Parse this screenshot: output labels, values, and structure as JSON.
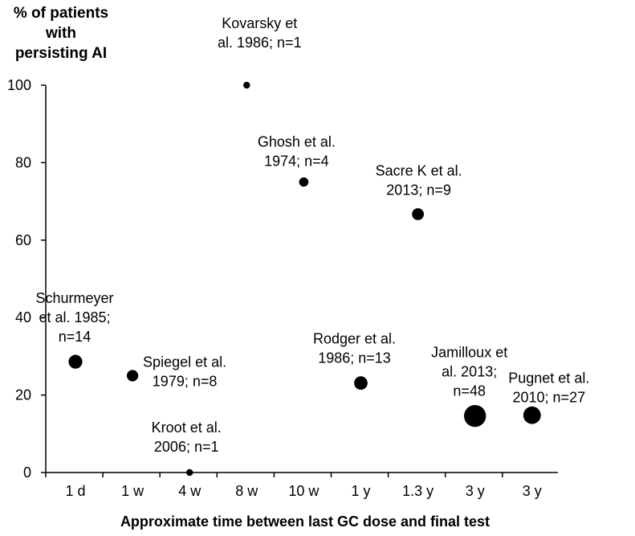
{
  "chart_data": {
    "type": "scatter",
    "ylabel_lines": [
      "% of patients",
      "with",
      "persisting AI"
    ],
    "xlabel": "Approximate time between last GC dose and final test",
    "categories": [
      "1 d",
      "1 w",
      "4 w",
      "8 w",
      "10 w",
      "1 y",
      "1.3 y",
      "3 y",
      "3 y"
    ],
    "ylim": [
      0,
      100
    ],
    "yticks": [
      "0",
      "20",
      "40",
      "60",
      "80",
      "100"
    ],
    "grid": false,
    "points": [
      {
        "category_index": 0,
        "y": 28.6,
        "n": 14,
        "label_lines": [
          "Schurmeyer",
          "et al. 1985;",
          "n=14"
        ]
      },
      {
        "category_index": 1,
        "y": 25,
        "n": 8,
        "label_lines": [
          "Spiegel et al.",
          "1979; n=8"
        ]
      },
      {
        "category_index": 2,
        "y": 0,
        "n": 1,
        "label_lines": [
          "Kroot et al.",
          "2006; n=1"
        ]
      },
      {
        "category_index": 3,
        "y": 100,
        "n": 1,
        "label_lines": [
          "Kovarsky et",
          "al. 1986; n=1"
        ]
      },
      {
        "category_index": 4,
        "y": 75,
        "n": 4,
        "label_lines": [
          "Ghosh et al.",
          "1974; n=4"
        ]
      },
      {
        "category_index": 5,
        "y": 23.1,
        "n": 13,
        "label_lines": [
          "Rodger et al.",
          "1986; n=13"
        ]
      },
      {
        "category_index": 6,
        "y": 66.7,
        "n": 9,
        "label_lines": [
          "Sacre K et al.",
          "2013; n=9"
        ]
      },
      {
        "category_index": 7,
        "y": 14.6,
        "n": 48,
        "label_lines": [
          "Jamilloux et",
          "al. 2013;",
          "n=48"
        ]
      },
      {
        "category_index": 8,
        "y": 14.8,
        "n": 27,
        "label_lines": [
          "Pugnet et al.",
          "2010; n=27"
        ]
      }
    ]
  }
}
